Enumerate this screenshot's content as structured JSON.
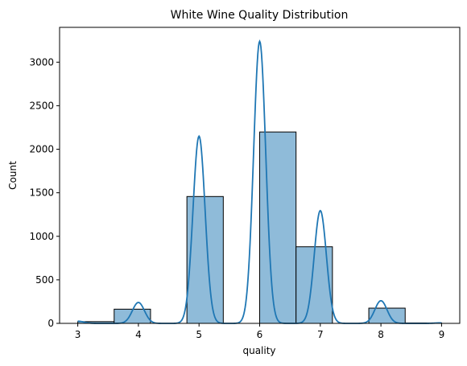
{
  "chart_data": {
    "type": "bar",
    "title": "White Wine Quality Distribution",
    "xlabel": "quality",
    "ylabel": "Count",
    "xlim": [
      2.7,
      9.3
    ],
    "ylim": [
      0,
      3400
    ],
    "x_ticks": [
      3,
      4,
      5,
      6,
      7,
      8,
      9
    ],
    "y_ticks": [
      0,
      500,
      1000,
      1500,
      2000,
      2500,
      3000
    ],
    "bins": [
      {
        "start": 3.0,
        "end": 3.6,
        "count": 20
      },
      {
        "start": 3.6,
        "end": 4.2,
        "count": 163
      },
      {
        "start": 4.2,
        "end": 4.8,
        "count": 0
      },
      {
        "start": 4.8,
        "end": 5.4,
        "count": 1457
      },
      {
        "start": 5.4,
        "end": 6.0,
        "count": 0
      },
      {
        "start": 6.0,
        "end": 6.6,
        "count": 2198
      },
      {
        "start": 6.6,
        "end": 7.2,
        "count": 880
      },
      {
        "start": 7.2,
        "end": 7.8,
        "count": 0
      },
      {
        "start": 7.8,
        "end": 8.4,
        "count": 175
      },
      {
        "start": 8.4,
        "end": 9.0,
        "count": 5
      }
    ],
    "kde": [
      {
        "center": 3,
        "peak": 25,
        "sigma": 0.1
      },
      {
        "center": 4,
        "peak": 240,
        "sigma": 0.1
      },
      {
        "center": 5,
        "peak": 2150,
        "sigma": 0.1
      },
      {
        "center": 6,
        "peak": 3240,
        "sigma": 0.1
      },
      {
        "center": 7,
        "peak": 1295,
        "sigma": 0.1
      },
      {
        "center": 8,
        "peak": 260,
        "sigma": 0.1
      },
      {
        "center": 9,
        "peak": 6,
        "sigma": 0.1
      }
    ],
    "colors": {
      "bar_fill": "#8fbbd9",
      "bar_edge": "#000000",
      "kde_line": "#1f77b4"
    }
  }
}
